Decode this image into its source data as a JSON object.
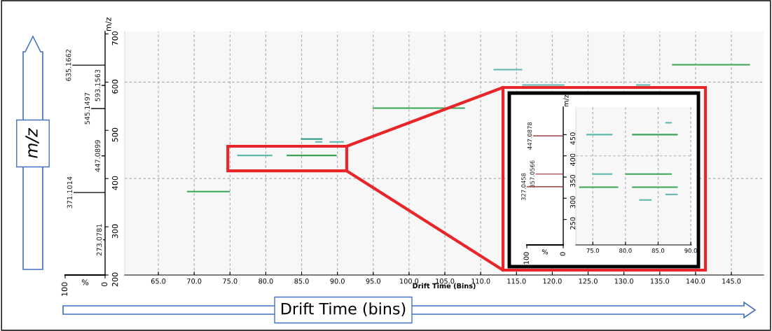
{
  "chart_data": [
    {
      "type": "bar",
      "orientation": "horizontal",
      "x": [
        273.0781,
        371.1014,
        447.0899,
        545.1497,
        593.1563,
        635.1662
      ],
      "values": [
        5,
        79,
        9,
        35,
        9,
        82
      ],
      "color": "#000000",
      "annotations": [
        {
          "text": "273.0781",
          "x": 5,
          "y": 273.0781
        },
        {
          "text": "371.1014",
          "x": 79,
          "y": 371.1014
        },
        {
          "text": "447.0899",
          "x": 9,
          "y": 447.0899
        },
        {
          "text": "545.1497",
          "x": 35,
          "y": 545.1497
        },
        {
          "text": "593.1563",
          "x": 9,
          "y": 593.1563
        },
        {
          "text": "635.1662",
          "x": 82,
          "y": 635.1662
        }
      ],
      "xlim": [
        100,
        0
      ],
      "xticks": [
        100,
        0
      ],
      "ylim": [
        200,
        705
      ],
      "yticks": [
        200,
        300,
        400,
        500,
        600,
        700
      ],
      "xlabel": "%",
      "ylabel": "m/z"
    },
    {
      "type": "line",
      "xlabel": "Drift Time (Bins)",
      "xlim": [
        60.3,
        149.5
      ],
      "ylim": [
        200,
        705
      ],
      "tick_labels": "x",
      "grid": true,
      "marker": "none",
      "line_style": "solid",
      "xticks": [
        {
          "value": 65,
          "label": "65.0"
        },
        {
          "value": 70,
          "label": "70.0"
        },
        {
          "value": 75,
          "label": "75.0"
        },
        {
          "value": 80,
          "label": "80.0"
        },
        {
          "value": 85,
          "label": "85.0"
        },
        {
          "value": 90,
          "label": "90.0"
        },
        {
          "value": 95,
          "label": "95.0"
        },
        {
          "value": 100,
          "label": "100.0"
        },
        {
          "value": 105,
          "label": "105.0"
        },
        {
          "value": 110,
          "label": "110.0"
        },
        {
          "value": 115,
          "label": "115.0"
        },
        {
          "value": 120,
          "label": "120.0"
        },
        {
          "value": 125,
          "label": "125.0"
        },
        {
          "value": 130,
          "label": "130.0"
        },
        {
          "value": 135,
          "label": "135.0"
        },
        {
          "value": 140,
          "label": "140.0"
        },
        {
          "value": 145,
          "label": "145.0"
        }
      ],
      "yticks": [
        400,
        600
      ],
      "annotations": [
        "m/z",
        "Drift Time (bins)"
      ],
      "series": [
        {
          "color": "#3aa655",
          "x": [
            69.0,
            75.0
          ],
          "values": [
            373,
            373
          ]
        },
        {
          "color": "#5fb8b0",
          "x": [
            76.0,
            80.9
          ],
          "values": [
            448,
            448
          ]
        },
        {
          "color": "#3aa655",
          "x": [
            82.9,
            89.9
          ],
          "values": [
            448,
            448
          ]
        },
        {
          "color": "#2a9a88",
          "x": [
            84.9,
            87.9
          ],
          "values": [
            482,
            482
          ]
        },
        {
          "color": "#5fb8b0",
          "x": [
            86.9,
            87.9
          ],
          "values": [
            476,
            476
          ]
        },
        {
          "color": "#5fb8b0",
          "x": [
            88.9,
            90.9
          ],
          "values": [
            476,
            476
          ]
        },
        {
          "color": "#3aa655",
          "x": [
            94.9,
            107.8
          ],
          "values": [
            546,
            546
          ]
        },
        {
          "color": "#5fb8b0",
          "x": [
            111.8,
            115.8
          ],
          "values": [
            626,
            626
          ]
        },
        {
          "color": "#5fb8b0",
          "x": [
            115.8,
            121.7
          ],
          "values": [
            594,
            594
          ]
        },
        {
          "color": "#5fb8b0",
          "x": [
            131.7,
            133.7
          ],
          "values": [
            594,
            594
          ]
        },
        {
          "color": "#3aa655",
          "x": [
            136.7,
            147.6
          ],
          "values": [
            636,
            636
          ]
        }
      ]
    },
    {
      "type": "bar",
      "orientation": "horizontal",
      "x": [
        327.0458,
        357.0566,
        447.0878
      ],
      "values": [
        100,
        76,
        83
      ],
      "color": "#8b1a1a",
      "annotations": [
        {
          "text": "327.0458",
          "x": 100,
          "y": 327.0458
        },
        {
          "text": "357.0566",
          "x": 76,
          "y": 357.0566
        },
        {
          "text": "447.0878",
          "x": 83,
          "y": 447.0878
        }
      ],
      "xlim": [
        100,
        0
      ],
      "xticks": [
        100,
        0
      ],
      "ylim": [
        190,
        515
      ],
      "yticks": [
        250,
        300,
        350,
        400,
        450
      ],
      "xlabel": "%",
      "ylabel": "m/z"
    },
    {
      "type": "line",
      "xlim": [
        72.4,
        90.1
      ],
      "ylim": [
        190,
        515
      ],
      "tick_labels": "x",
      "grid": true,
      "marker": "none",
      "line_style": "solid",
      "xticks": [
        {
          "value": 75,
          "label": "75.0"
        },
        {
          "value": 80,
          "label": "80.0"
        },
        {
          "value": 85,
          "label": "85.0"
        },
        {
          "value": 90,
          "label": "90.0"
        }
      ],
      "yticks": [
        400
      ],
      "series": [
        {
          "color": "#5fb8b0",
          "x": [
            74.0,
            78.0
          ],
          "values": [
            450,
            450
          ]
        },
        {
          "color": "#3aa655",
          "x": [
            81.0,
            88.0
          ],
          "values": [
            450,
            450
          ]
        },
        {
          "color": "#5fb8b0",
          "x": [
            86.1,
            87.1
          ],
          "values": [
            478,
            478
          ]
        },
        {
          "color": "#5fb8b0",
          "x": [
            74.9,
            78.0
          ],
          "values": [
            357,
            357
          ]
        },
        {
          "color": "#3aa655",
          "x": [
            80.0,
            87.1
          ],
          "values": [
            357,
            357
          ]
        },
        {
          "color": "#3aa655",
          "x": [
            72.9,
            78.9
          ],
          "values": [
            326,
            326
          ]
        },
        {
          "color": "#3aa655",
          "x": [
            81.0,
            88.0
          ],
          "values": [
            326,
            326
          ]
        },
        {
          "color": "#5fb8b0",
          "x": [
            86.1,
            88.0
          ],
          "values": [
            309,
            309
          ]
        },
        {
          "color": "#5fb8b0",
          "x": [
            82.1,
            84.0
          ],
          "values": [
            296,
            296
          ]
        }
      ]
    }
  ]
}
